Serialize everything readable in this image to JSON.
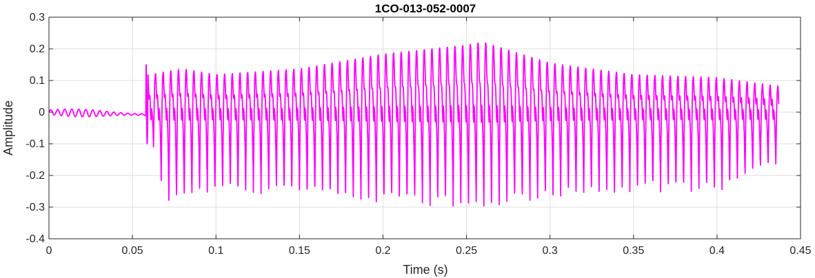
{
  "chart_data": {
    "type": "line",
    "title": "1CO-013-052-0007",
    "xlabel": "Time (s)",
    "ylabel": "Amplitude",
    "xlim": [
      0,
      0.45
    ],
    "ylim": [
      -0.4,
      0.3
    ],
    "xticks": [
      0,
      0.05,
      0.1,
      0.15,
      0.2,
      0.25,
      0.3,
      0.35,
      0.4,
      0.45
    ],
    "xtick_labels": [
      "0",
      "0.05",
      "0.1",
      "0.15",
      "0.2",
      "0.25",
      "0.3",
      "0.35",
      "0.4",
      "0.45"
    ],
    "yticks": [
      -0.4,
      -0.3,
      -0.2,
      -0.1,
      0,
      0.1,
      0.2,
      0.3
    ],
    "ytick_labels": [
      "-0.4",
      "-0.3",
      "-0.2",
      "-0.1",
      "0",
      "0.1",
      "0.2",
      "0.3"
    ],
    "grid": true,
    "series": [
      {
        "color": "#ff00ff",
        "onset_time": 0.058,
        "end_time": 0.437,
        "pitch_period": 0.0046,
        "pre_onset_noise_amplitude": 0.012,
        "onset_spike": {
          "max": 0.15,
          "min": -0.1
        },
        "envelope_max": {
          "t": [
            0.06,
            0.08,
            0.1,
            0.15,
            0.2,
            0.25,
            0.26,
            0.3,
            0.35,
            0.4,
            0.437
          ],
          "v": [
            0.11,
            0.13,
            0.11,
            0.13,
            0.18,
            0.21,
            0.22,
            0.15,
            0.11,
            0.1,
            0.07
          ]
        },
        "envelope_min": {
          "t": [
            0.06,
            0.07,
            0.08,
            0.1,
            0.15,
            0.2,
            0.25,
            0.26,
            0.3,
            0.35,
            0.4,
            0.437
          ],
          "v": [
            -0.05,
            -0.28,
            -0.27,
            -0.24,
            -0.25,
            -0.28,
            -0.29,
            -0.3,
            -0.26,
            -0.24,
            -0.24,
            -0.16
          ]
        }
      }
    ]
  }
}
